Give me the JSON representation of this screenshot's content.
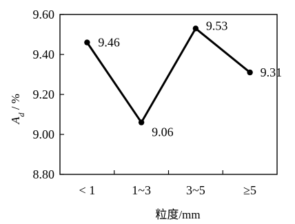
{
  "chart_data": {
    "type": "line",
    "categories": [
      "< 1",
      "1~3",
      "3~5",
      "≥5"
    ],
    "series": [
      {
        "values": [
          9.46,
          9.06,
          9.53,
          9.31
        ]
      }
    ],
    "data_labels": [
      "9.46",
      "9.06",
      "9.53",
      "9.31"
    ],
    "ylim": [
      8.8,
      9.6
    ],
    "y_ticks": [
      "8.80",
      "9.00",
      "9.20",
      "9.40",
      "9.60"
    ],
    "y_tick_values": [
      8.8,
      9.0,
      9.2,
      9.4,
      9.6
    ],
    "ylabel_main": "A",
    "ylabel_sub": "d",
    "ylabel_rest": " / %",
    "xlabel": "粒度/mm",
    "grid": false,
    "line_color": "#000000"
  }
}
